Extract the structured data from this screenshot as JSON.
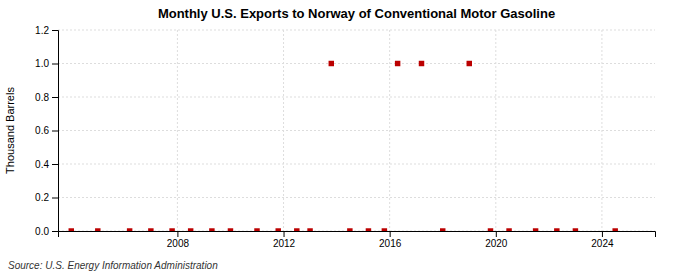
{
  "chart_data": {
    "type": "scatter",
    "title": "Monthly U.S. Exports to Norway of Conventional Motor Gasoline",
    "ylabel": "Thousand Barrels",
    "source": "Source: U.S. Energy Information Administration",
    "x": [
      2004.0,
      2005.0,
      2006.2,
      2007.0,
      2007.8,
      2008.5,
      2009.3,
      2010.0,
      2011.0,
      2011.8,
      2012.5,
      2013.0,
      2013.8,
      2014.5,
      2015.2,
      2015.8,
      2016.3,
      2017.2,
      2018.0,
      2019.0,
      2019.8,
      2020.5,
      2021.5,
      2022.3,
      2023.0,
      2024.5
    ],
    "values": [
      0.0,
      0.0,
      0.0,
      0.0,
      0.0,
      0.0,
      0.0,
      0.0,
      0.0,
      0.0,
      0.0,
      0.0,
      1.0,
      0.0,
      0.0,
      0.0,
      1.0,
      1.0,
      0.0,
      1.0,
      0.0,
      0.0,
      0.0,
      0.0,
      0.0,
      0.0
    ],
    "color": "#bb0000",
    "marker": "square",
    "xlim": [
      2003.5,
      2026.0
    ],
    "ylim": [
      0.0,
      1.2
    ],
    "xticks": [
      2008,
      2012,
      2016,
      2020,
      2024
    ],
    "yticks": [
      {
        "value": 0.0,
        "label": "0.0"
      },
      0.2,
      0.4,
      0.6,
      0.8,
      {
        "value": 1.0,
        "label": "1.0"
      },
      1.2
    ],
    "grid": true
  }
}
